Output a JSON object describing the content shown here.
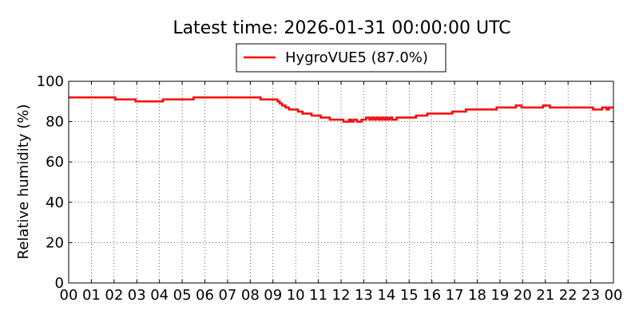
{
  "chart_data": {
    "type": "line",
    "title": "Latest time: 2026-01-31 00:00:00 UTC",
    "xlabel": "",
    "ylabel": "Relative humidity (%)",
    "xlim": [
      0,
      24
    ],
    "ylim": [
      0,
      100
    ],
    "x_tick_values": [
      0,
      1,
      2,
      3,
      4,
      5,
      6,
      7,
      8,
      9,
      10,
      11,
      12,
      13,
      14,
      15,
      16,
      17,
      18,
      19,
      20,
      21,
      22,
      23,
      24
    ],
    "x_tick_labels": [
      "00",
      "01",
      "02",
      "03",
      "04",
      "05",
      "06",
      "07",
      "08",
      "09",
      "10",
      "11",
      "12",
      "13",
      "14",
      "15",
      "16",
      "17",
      "18",
      "19",
      "20",
      "21",
      "22",
      "23",
      "00"
    ],
    "y_ticks": [
      0,
      20,
      40,
      60,
      80,
      100
    ],
    "grid": true,
    "grid_style": "dotted",
    "legend_position": "top-center",
    "series": [
      {
        "name": "HygroVUE5 (87.0%)",
        "color": "#ff0000",
        "x": [
          0,
          2.0,
          2.05,
          2.9,
          2.95,
          4.1,
          4.15,
          5.4,
          5.5,
          8.4,
          8.45,
          9.1,
          9.2,
          9.3,
          9.4,
          9.55,
          9.7,
          9.85,
          10.1,
          10.3,
          10.5,
          10.7,
          10.9,
          11.1,
          11.3,
          11.5,
          11.7,
          11.9,
          12.1,
          12.25,
          12.35,
          12.45,
          12.55,
          12.7,
          12.8,
          12.9,
          13.0,
          13.1,
          13.25,
          13.35,
          13.45,
          13.55,
          13.65,
          13.75,
          13.85,
          13.95,
          14.05,
          14.15,
          14.25,
          14.35,
          14.45,
          14.7,
          15.3,
          15.8,
          16.9,
          17.5,
          18.8,
          18.85,
          19.7,
          19.95,
          20.8,
          20.9,
          21.2,
          23.0,
          23.1,
          23.4,
          23.5,
          23.7,
          23.8,
          24.0
        ],
        "values": [
          92,
          92,
          91,
          91,
          90,
          90,
          91,
          91,
          92,
          92,
          91,
          91,
          90,
          89,
          88,
          87,
          86,
          86,
          85,
          84,
          84,
          83,
          83,
          82,
          82,
          81,
          81,
          81,
          80,
          80,
          81,
          80,
          81,
          80,
          80,
          81,
          81,
          82,
          81,
          82,
          81,
          82,
          81,
          82,
          81,
          82,
          81,
          82,
          81,
          81,
          82,
          82,
          83,
          84,
          85,
          86,
          86,
          87,
          88,
          87,
          87,
          88,
          87,
          87,
          86,
          86,
          87,
          86,
          87,
          87
        ]
      }
    ]
  }
}
